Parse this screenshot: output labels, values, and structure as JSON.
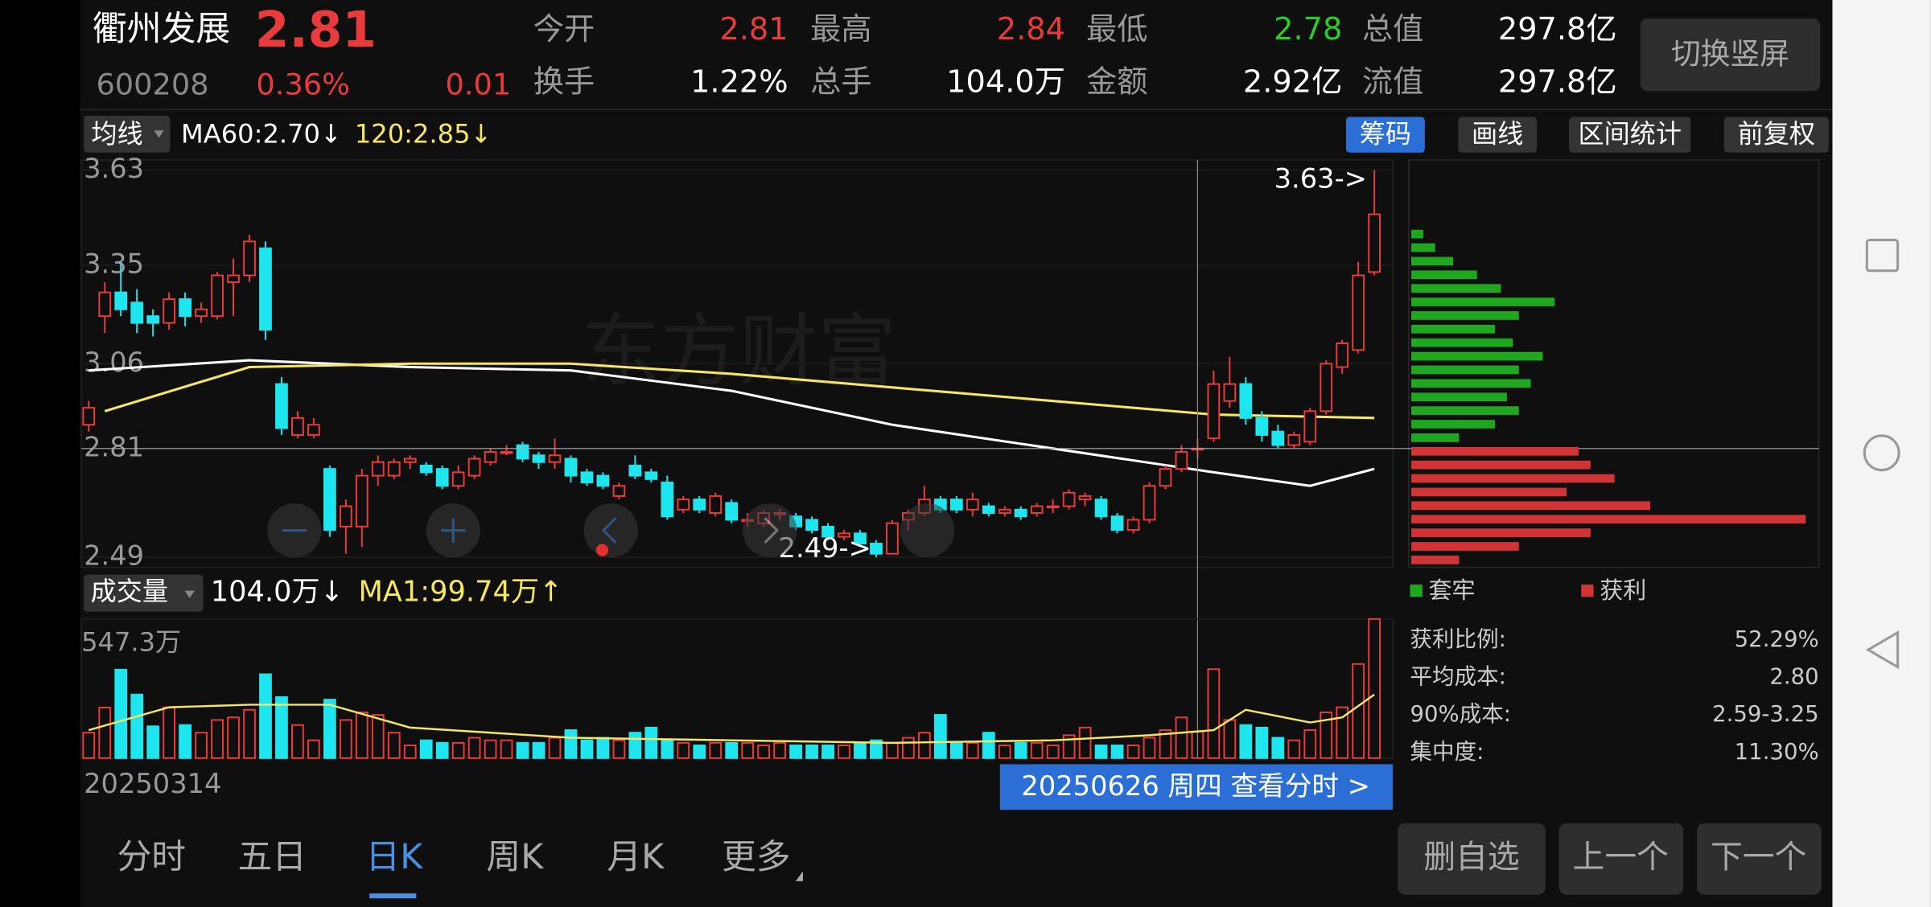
{
  "header": {
    "name": "衢州发展",
    "price": "2.81",
    "code": "600208",
    "change_pct": "0.36%",
    "change": "0.01",
    "stats": [
      {
        "label": "今开",
        "value": "2.81",
        "color": "#e83b3b"
      },
      {
        "label": "最高",
        "value": "2.84",
        "color": "#e83b3b"
      },
      {
        "label": "最低",
        "value": "2.78",
        "color": "#2ccb2c"
      },
      {
        "label": "总值",
        "value": "297.8亿",
        "color": "#ffffff"
      },
      {
        "label": "换手",
        "value": "1.22%",
        "color": "#ffffff"
      },
      {
        "label": "总手",
        "value": "104.0万",
        "color": "#ffffff"
      },
      {
        "label": "金额",
        "value": "2.92亿",
        "color": "#ffffff"
      },
      {
        "label": "流值",
        "value": "297.8亿",
        "color": "#ffffff"
      }
    ],
    "button": "切换竖屏"
  },
  "toolbar": {
    "ma_menu": "均线",
    "ma60": "MA60:2.70↓",
    "ma120": "120:2.85↓",
    "buttons": [
      "筹码",
      "画线",
      "区间统计",
      "前复权"
    ]
  },
  "watermark": "东方财富",
  "chart_data": [
    {
      "type": "candlestick",
      "up_color": "#e83b3b",
      "down_color": "#1fe5ee",
      "open": [
        2.88,
        3.2,
        3.27,
        3.24,
        3.2,
        3.18,
        3.25,
        3.2,
        3.2,
        3.3,
        3.32,
        3.4,
        3.0,
        2.85,
        2.85,
        2.75,
        2.58,
        2.58,
        2.73,
        2.73,
        2.77,
        2.76,
        2.75,
        2.7,
        2.73,
        2.77,
        2.8,
        2.82,
        2.79,
        2.77,
        2.78,
        2.74,
        2.73,
        2.67,
        2.76,
        2.74,
        2.71,
        2.63,
        2.66,
        2.62,
        2.65,
        2.6,
        2.59,
        2.62,
        2.61,
        2.6,
        2.58,
        2.55,
        2.56,
        2.53,
        2.5,
        2.6,
        2.62,
        2.66,
        2.66,
        2.63,
        2.64,
        2.62,
        2.63,
        2.62,
        2.64,
        2.64,
        2.66,
        2.66,
        2.61,
        2.57,
        2.6,
        2.7,
        2.75,
        2.81,
        2.84,
        2.95,
        3.0,
        2.9,
        2.86,
        2.82,
        2.83,
        2.92,
        3.05,
        3.1,
        3.33
      ],
      "close": [
        2.93,
        3.27,
        3.22,
        3.18,
        3.18,
        3.25,
        3.2,
        3.22,
        3.32,
        3.32,
        3.42,
        3.16,
        2.87,
        2.9,
        2.88,
        2.57,
        2.64,
        2.73,
        2.77,
        2.77,
        2.78,
        2.74,
        2.7,
        2.74,
        2.78,
        2.8,
        2.8,
        2.78,
        2.77,
        2.79,
        2.73,
        2.71,
        2.7,
        2.7,
        2.73,
        2.72,
        2.61,
        2.66,
        2.63,
        2.67,
        2.6,
        2.6,
        2.62,
        2.62,
        2.58,
        2.57,
        2.55,
        2.56,
        2.53,
        2.5,
        2.59,
        2.62,
        2.66,
        2.63,
        2.63,
        2.66,
        2.62,
        2.63,
        2.61,
        2.64,
        2.64,
        2.68,
        2.67,
        2.61,
        2.57,
        2.6,
        2.7,
        2.75,
        2.8,
        2.81,
        3.0,
        3.0,
        2.9,
        2.85,
        2.82,
        2.85,
        2.92,
        3.06,
        3.12,
        3.32,
        3.5
      ],
      "high": [
        2.95,
        3.3,
        3.36,
        3.28,
        3.22,
        3.27,
        3.27,
        3.24,
        3.33,
        3.37,
        3.44,
        3.42,
        3.02,
        2.92,
        2.9,
        2.76,
        2.66,
        2.75,
        2.79,
        2.78,
        2.79,
        2.77,
        2.76,
        2.76,
        2.79,
        2.81,
        2.82,
        2.83,
        2.8,
        2.84,
        2.79,
        2.75,
        2.74,
        2.71,
        2.79,
        2.75,
        2.73,
        2.67,
        2.67,
        2.68,
        2.66,
        2.62,
        2.63,
        2.63,
        2.62,
        2.61,
        2.59,
        2.57,
        2.57,
        2.54,
        2.6,
        2.63,
        2.7,
        2.67,
        2.67,
        2.68,
        2.65,
        2.64,
        2.64,
        2.65,
        2.66,
        2.69,
        2.68,
        2.67,
        2.62,
        2.61,
        2.71,
        2.76,
        2.82,
        2.84,
        3.04,
        3.08,
        3.02,
        2.92,
        2.88,
        2.86,
        2.93,
        3.07,
        3.13,
        3.36,
        3.63
      ],
      "low": [
        2.86,
        3.15,
        3.2,
        3.15,
        3.14,
        3.16,
        3.17,
        3.18,
        3.19,
        3.2,
        3.3,
        3.13,
        2.85,
        2.84,
        2.84,
        2.55,
        2.5,
        2.52,
        2.7,
        2.72,
        2.75,
        2.73,
        2.69,
        2.69,
        2.72,
        2.76,
        2.79,
        2.77,
        2.75,
        2.75,
        2.71,
        2.7,
        2.69,
        2.66,
        2.72,
        2.71,
        2.6,
        2.62,
        2.62,
        2.61,
        2.59,
        2.58,
        2.58,
        2.6,
        2.57,
        2.56,
        2.54,
        2.54,
        2.52,
        2.49,
        2.5,
        2.57,
        2.61,
        2.62,
        2.62,
        2.61,
        2.61,
        2.61,
        2.6,
        2.61,
        2.62,
        2.63,
        2.64,
        2.6,
        2.56,
        2.56,
        2.59,
        2.69,
        2.74,
        2.78,
        2.83,
        2.93,
        2.88,
        2.83,
        2.81,
        2.81,
        2.82,
        2.91,
        3.03,
        3.09,
        3.32
      ],
      "lines": [
        {
          "color": "#ffffff",
          "x": [
            0,
            10,
            20,
            30,
            40,
            50,
            60,
            70,
            76,
            80
          ],
          "values": [
            3.04,
            3.07,
            3.05,
            3.04,
            2.98,
            2.88,
            2.81,
            2.74,
            2.7,
            2.75
          ]
        },
        {
          "color": "#f5e663",
          "x": [
            1,
            10,
            20,
            30,
            40,
            50,
            60,
            70,
            80
          ],
          "values": [
            2.92,
            3.05,
            3.06,
            3.06,
            3.03,
            2.99,
            2.95,
            2.91,
            2.9
          ]
        }
      ],
      "ylim": [
        2.46,
        3.66
      ],
      "yticks": [
        3.63,
        3.35,
        3.06,
        2.81,
        2.49
      ],
      "annotations": [
        "3.63->",
        "2.49->"
      ],
      "crosshair": {
        "x": 69,
        "y": 2.81
      },
      "x_start_label": "20250314",
      "crosshair_label": "20250626 周四 查看分时 >"
    },
    {
      "type": "bar",
      "legend": "成交量",
      "value_text": "104.0万↓",
      "ma_text": "MA1:99.74万↑",
      "values": [
        100,
        199,
        348,
        250,
        125,
        200,
        130,
        100,
        150,
        160,
        190,
        330,
        240,
        130,
        70,
        230,
        150,
        180,
        170,
        100,
        50,
        70,
        60,
        60,
        80,
        70,
        70,
        60,
        60,
        80,
        110,
        70,
        80,
        70,
        100,
        120,
        70,
        60,
        50,
        60,
        60,
        60,
        50,
        60,
        50,
        50,
        50,
        50,
        60,
        70,
        60,
        80,
        100,
        170,
        60,
        60,
        100,
        50,
        60,
        60,
        50,
        90,
        120,
        50,
        50,
        50,
        80,
        110,
        160,
        104,
        350,
        150,
        130,
        120,
        80,
        70,
        110,
        180,
        200,
        370,
        547.3
      ],
      "lines": [
        {
          "color": "#f5e663",
          "x": [
            0,
            5,
            10,
            15,
            20,
            30,
            40,
            50,
            60,
            66,
            70,
            72,
            76,
            78,
            80
          ],
          "values": [
            110,
            200,
            210,
            210,
            120,
            80,
            70,
            60,
            70,
            90,
            110,
            190,
            140,
            160,
            250
          ]
        }
      ],
      "ylim": [
        0,
        547.3
      ],
      "yticks": [
        {
          "value": 547.3,
          "label": "547.3万"
        }
      ]
    },
    {
      "type": "bar",
      "orientation": "horizontal",
      "xlim": [
        0,
        340
      ],
      "series": [
        {
          "name": "套牢",
          "color": "#1fa81f",
          "prices": [
            3.44,
            3.4,
            3.36,
            3.32,
            3.28,
            3.24,
            3.2,
            3.16,
            3.12,
            3.08,
            3.04,
            3.0,
            2.96,
            2.92,
            2.88,
            2.84
          ],
          "values": [
            10,
            20,
            35,
            55,
            75,
            120,
            90,
            70,
            85,
            110,
            90,
            100,
            80,
            90,
            70,
            40
          ]
        },
        {
          "name": "获利",
          "color": "#d03434",
          "prices": [
            2.8,
            2.76,
            2.72,
            2.68,
            2.64,
            2.6,
            2.56,
            2.52,
            2.48
          ],
          "values": [
            140,
            150,
            170,
            130,
            200,
            330,
            150,
            90,
            40
          ]
        }
      ]
    }
  ],
  "chip_stats": [
    {
      "label": "获利比例:",
      "value": "52.29%"
    },
    {
      "label": "平均成本:",
      "value": "2.80"
    },
    {
      "label": "90%成本:",
      "value": "2.59-3.25"
    },
    {
      "label": "集中度:",
      "value": "11.30%"
    }
  ],
  "tabs": [
    "分时",
    "五日",
    "日K",
    "周K",
    "月K",
    "更多"
  ],
  "buttons": [
    "删自选",
    "上一个",
    "下一个"
  ]
}
